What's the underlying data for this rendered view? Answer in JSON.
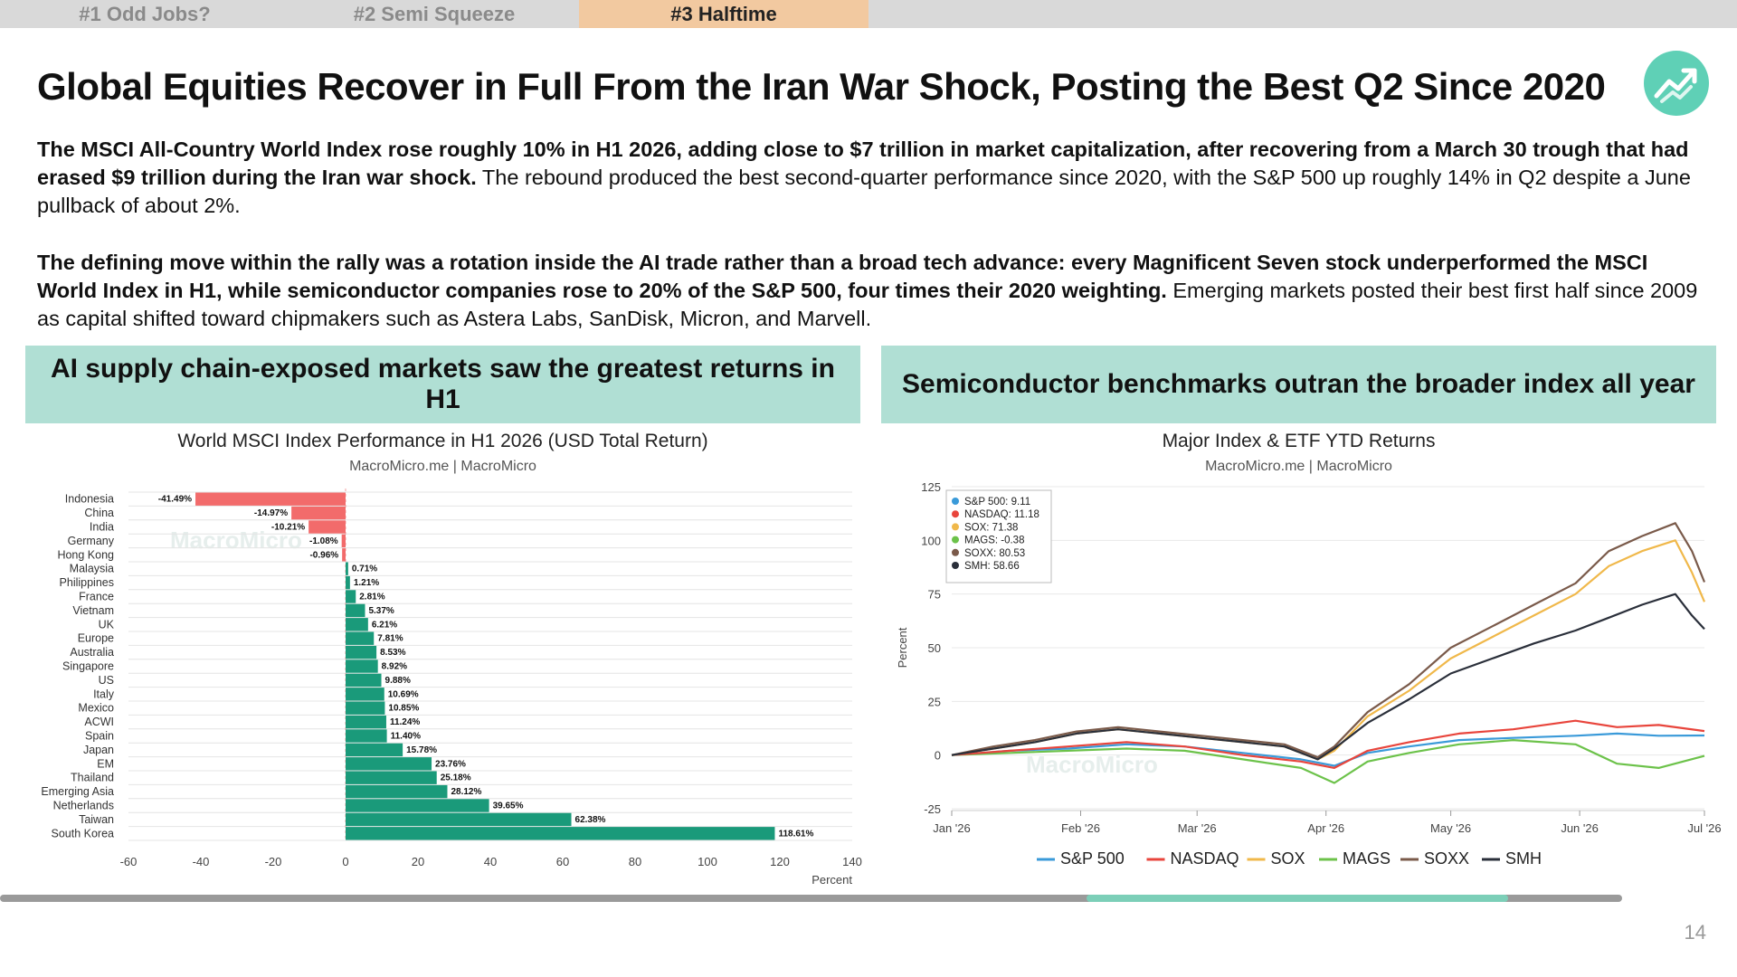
{
  "tabs": [
    {
      "label": "#1 Odd Jobs?",
      "active": false
    },
    {
      "label": "#2 Semi Squeeze",
      "active": false
    },
    {
      "label": "#3 Halftime",
      "active": true
    }
  ],
  "title": "Global Equities Recover in Full From the Iran War Shock, Posting the Best Q2 Since 2020",
  "logo_icon": "chart-up-icon",
  "paragraphs": [
    {
      "bold": "The MSCI All-Country World Index rose roughly 10% in H1 2026, adding close to $7 trillion in market capitalization, after recovering from a March 30 trough that had erased $9 trillion during the Iran war shock.",
      "normal": " The rebound produced the best second-quarter performance since 2020, with the S&P 500 up roughly 14% in Q2 despite a June pullback of about 2%."
    },
    {
      "bold": "The defining move within the rally was a rotation inside the AI trade rather than a broad tech advance: every Magnificent Seven stock underperformed the MSCI World Index in H1, while semiconductor companies rose to 20% of the S&P 500, four times their 2020 weighting.",
      "normal": " Emerging markets posted their best first half since 2009 as capital shifted toward chipmakers such as Astera Labs, SanDisk, Micron, and Marvell."
    }
  ],
  "panels": {
    "left_heading": "AI supply chain-exposed markets saw the greatest returns in H1",
    "right_heading": "Semiconductor benchmarks outran the broader index all year"
  },
  "watermark": "MacroMicro",
  "progress": {
    "start": 0.67,
    "end": 0.93
  },
  "page_number": "14",
  "chart_data": [
    {
      "type": "bar",
      "orientation": "horizontal",
      "title": "World MSCI Index Performance in H1 2026 (USD Total Return)",
      "subtitle": "MacroMicro.me | MacroMicro",
      "xlabel": "Percent",
      "xlim": [
        -60,
        140
      ],
      "xticks": [
        -60,
        -40,
        -20,
        0,
        20,
        40,
        60,
        80,
        100,
        120,
        140
      ],
      "categories": [
        "Indonesia",
        "China",
        "India",
        "Germany",
        "Hong Kong",
        "Malaysia",
        "Philippines",
        "France",
        "Vietnam",
        "UK",
        "Europe",
        "Australia",
        "Singapore",
        "US",
        "Italy",
        "Mexico",
        "ACWI",
        "Spain",
        "Japan",
        "EM",
        "Thailand",
        "Emerging Asia",
        "Netherlands",
        "Taiwan",
        "South Korea"
      ],
      "values": [
        -41.49,
        -14.97,
        -10.21,
        -1.08,
        -0.96,
        0.71,
        1.21,
        2.81,
        5.37,
        6.21,
        7.81,
        8.53,
        8.92,
        9.88,
        10.69,
        10.85,
        11.24,
        11.4,
        15.78,
        23.76,
        25.18,
        28.12,
        39.65,
        62.38,
        118.61
      ],
      "labels": [
        "-41.49%",
        "-14.97%",
        "-10.21%",
        "-1.08%",
        "-0.96%",
        "0.71%",
        "1.21%",
        "2.81%",
        "5.37%",
        "6.21%",
        "7.81%",
        "8.53%",
        "8.92%",
        "9.88%",
        "10.69%",
        "10.85%",
        "11.24%",
        "11.40%",
        "15.78%",
        "23.76%",
        "25.18%",
        "28.12%",
        "39.65%",
        "62.38%",
        "118.61%"
      ],
      "colors": {
        "positive": "#1a9a7a",
        "negative": "#f26b6b"
      },
      "grid": true
    },
    {
      "type": "line",
      "title": "Major Index & ETF YTD Returns",
      "subtitle": "MacroMicro.me | MacroMicro",
      "ylabel": "Percent",
      "ylim": [
        -25,
        125
      ],
      "yticks": [
        -25,
        0,
        25,
        50,
        75,
        100,
        125
      ],
      "x_ticks": [
        "Jan '26",
        "Feb '26",
        "Mar '26",
        "Apr '26",
        "May '26",
        "Jun '26",
        "Jul '26"
      ],
      "x_tick_days": [
        0,
        31,
        59,
        90,
        120,
        151,
        181
      ],
      "legend_position": "top-left",
      "legend_box": [
        "S&P 500: 9.11",
        "NASDAQ: 11.18",
        "SOX: 71.38",
        "MAGS: -0.38",
        "SOXX: 80.53",
        "SMH: 58.66"
      ],
      "series": [
        {
          "name": "S&P 500",
          "color": "#3a9ad9",
          "points": [
            [
              0,
              0
            ],
            [
              14,
              2
            ],
            [
              28,
              3
            ],
            [
              42,
              5
            ],
            [
              56,
              4
            ],
            [
              70,
              1
            ],
            [
              84,
              -2
            ],
            [
              92,
              -5
            ],
            [
              100,
              1
            ],
            [
              110,
              4
            ],
            [
              122,
              7
            ],
            [
              135,
              8
            ],
            [
              150,
              9
            ],
            [
              160,
              10
            ],
            [
              170,
              9
            ],
            [
              181,
              9.11
            ]
          ]
        },
        {
          "name": "NASDAQ",
          "color": "#e8453c",
          "points": [
            [
              0,
              0
            ],
            [
              14,
              2
            ],
            [
              28,
              4
            ],
            [
              42,
              6
            ],
            [
              56,
              4
            ],
            [
              70,
              0
            ],
            [
              84,
              -3
            ],
            [
              92,
              -6
            ],
            [
              100,
              2
            ],
            [
              110,
              6
            ],
            [
              122,
              10
            ],
            [
              135,
              12
            ],
            [
              150,
              16
            ],
            [
              160,
              13
            ],
            [
              170,
              14
            ],
            [
              181,
              11.18
            ]
          ]
        },
        {
          "name": "SOX",
          "color": "#f0b84a",
          "points": [
            [
              0,
              0
            ],
            [
              10,
              3
            ],
            [
              20,
              6
            ],
            [
              30,
              10
            ],
            [
              40,
              12
            ],
            [
              50,
              10
            ],
            [
              60,
              8
            ],
            [
              70,
              6
            ],
            [
              80,
              4
            ],
            [
              88,
              -2
            ],
            [
              92,
              2
            ],
            [
              100,
              18
            ],
            [
              110,
              30
            ],
            [
              120,
              45
            ],
            [
              130,
              55
            ],
            [
              140,
              65
            ],
            [
              150,
              75
            ],
            [
              158,
              88
            ],
            [
              166,
              95
            ],
            [
              174,
              100
            ],
            [
              178,
              85
            ],
            [
              181,
              71.38
            ]
          ]
        },
        {
          "name": "MAGS",
          "color": "#6cc24a",
          "points": [
            [
              0,
              0
            ],
            [
              14,
              1
            ],
            [
              28,
              2
            ],
            [
              42,
              3
            ],
            [
              56,
              2
            ],
            [
              70,
              -2
            ],
            [
              84,
              -6
            ],
            [
              92,
              -13
            ],
            [
              100,
              -3
            ],
            [
              110,
              1
            ],
            [
              122,
              5
            ],
            [
              135,
              7
            ],
            [
              150,
              5
            ],
            [
              160,
              -4
            ],
            [
              170,
              -6
            ],
            [
              181,
              -0.38
            ]
          ]
        },
        {
          "name": "SOXX",
          "color": "#7a5a4a",
          "points": [
            [
              0,
              0
            ],
            [
              10,
              4
            ],
            [
              20,
              7
            ],
            [
              30,
              11
            ],
            [
              40,
              13
            ],
            [
              50,
              11
            ],
            [
              60,
              9
            ],
            [
              70,
              7
            ],
            [
              80,
              5
            ],
            [
              88,
              -1
            ],
            [
              92,
              4
            ],
            [
              100,
              20
            ],
            [
              110,
              33
            ],
            [
              120,
              50
            ],
            [
              130,
              60
            ],
            [
              140,
              70
            ],
            [
              150,
              80
            ],
            [
              158,
              95
            ],
            [
              166,
              102
            ],
            [
              174,
              108
            ],
            [
              178,
              95
            ],
            [
              181,
              80.53
            ]
          ]
        },
        {
          "name": "SMH",
          "color": "#2a2f3a",
          "points": [
            [
              0,
              0
            ],
            [
              10,
              3
            ],
            [
              20,
              6
            ],
            [
              30,
              10
            ],
            [
              40,
              12
            ],
            [
              50,
              10
            ],
            [
              60,
              8
            ],
            [
              70,
              6
            ],
            [
              80,
              4
            ],
            [
              88,
              -2
            ],
            [
              92,
              3
            ],
            [
              100,
              15
            ],
            [
              110,
              26
            ],
            [
              120,
              38
            ],
            [
              130,
              45
            ],
            [
              140,
              52
            ],
            [
              150,
              58
            ],
            [
              158,
              64
            ],
            [
              166,
              70
            ],
            [
              174,
              75
            ],
            [
              178,
              65
            ],
            [
              181,
              58.66
            ]
          ]
        }
      ]
    }
  ]
}
